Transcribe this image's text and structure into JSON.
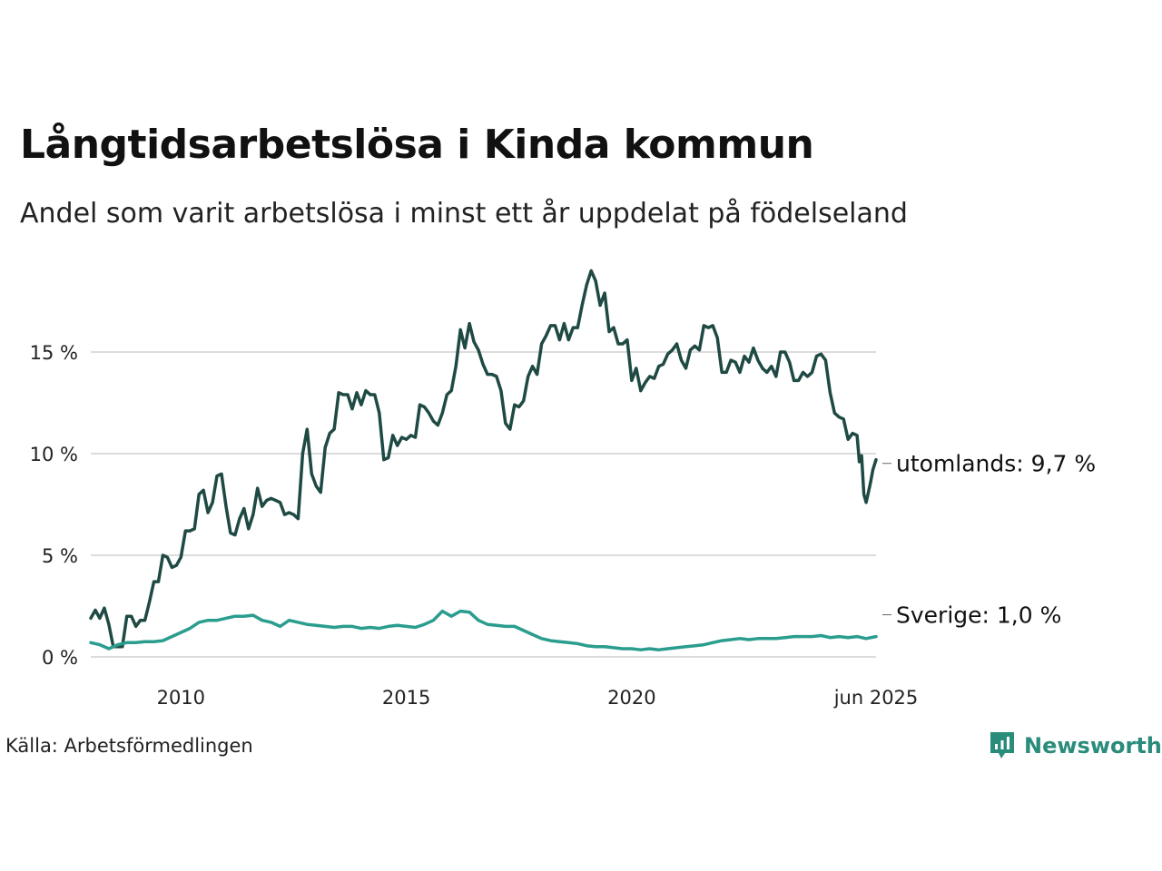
{
  "title": "Långtidsarbetslösa i Kinda kommun",
  "subtitle": "Andel som varit arbetslösa i minst ett år uppdelat på födelseland",
  "source": "Källa: Arbetsförmedlingen",
  "brand": {
    "name": "Newsworthy",
    "icon": "newsworthy-logo-icon",
    "color": "#2a8c7a"
  },
  "chart_data": {
    "type": "line",
    "title": "Långtidsarbetslösa i Kinda kommun",
    "subtitle": "Andel som varit arbetslösa i minst ett år uppdelat på födelseland",
    "xlabel": "",
    "ylabel": "",
    "xlim": [
      2008.0,
      2025.42
    ],
    "ylim": [
      0,
      19
    ],
    "x_ticks": [
      2010,
      2015,
      2020,
      2025.42
    ],
    "x_tick_labels": [
      "2010",
      "2015",
      "2020",
      "jun 2025"
    ],
    "y_ticks": [
      0,
      5,
      10,
      15
    ],
    "y_tick_labels": [
      "0 %",
      "5 %",
      "10 %",
      "15 %"
    ],
    "grid": true,
    "series": [
      {
        "name": "utomlands",
        "end_label": "utomlands: 9,7 %",
        "color": "#1f4a44",
        "points": [
          [
            2008.0,
            1.9
          ],
          [
            2008.1,
            2.3
          ],
          [
            2008.2,
            1.9
          ],
          [
            2008.3,
            2.4
          ],
          [
            2008.4,
            1.6
          ],
          [
            2008.5,
            0.5
          ],
          [
            2008.6,
            0.5
          ],
          [
            2008.7,
            0.5
          ],
          [
            2008.8,
            2.0
          ],
          [
            2008.9,
            2.0
          ],
          [
            2009.0,
            1.5
          ],
          [
            2009.1,
            1.8
          ],
          [
            2009.2,
            1.8
          ],
          [
            2009.3,
            2.7
          ],
          [
            2009.4,
            3.7
          ],
          [
            2009.5,
            3.7
          ],
          [
            2009.6,
            5.0
          ],
          [
            2009.7,
            4.9
          ],
          [
            2009.8,
            4.4
          ],
          [
            2009.9,
            4.5
          ],
          [
            2010.0,
            4.9
          ],
          [
            2010.1,
            6.2
          ],
          [
            2010.2,
            6.2
          ],
          [
            2010.3,
            6.3
          ],
          [
            2010.4,
            8.0
          ],
          [
            2010.5,
            8.2
          ],
          [
            2010.6,
            7.1
          ],
          [
            2010.7,
            7.6
          ],
          [
            2010.8,
            8.9
          ],
          [
            2010.9,
            9.0
          ],
          [
            2011.0,
            7.4
          ],
          [
            2011.1,
            6.1
          ],
          [
            2011.2,
            6.0
          ],
          [
            2011.3,
            6.8
          ],
          [
            2011.4,
            7.3
          ],
          [
            2011.5,
            6.3
          ],
          [
            2011.6,
            7.0
          ],
          [
            2011.7,
            8.3
          ],
          [
            2011.8,
            7.4
          ],
          [
            2011.9,
            7.7
          ],
          [
            2012.0,
            7.8
          ],
          [
            2012.1,
            7.7
          ],
          [
            2012.2,
            7.6
          ],
          [
            2012.3,
            7.0
          ],
          [
            2012.4,
            7.1
          ],
          [
            2012.5,
            7.0
          ],
          [
            2012.6,
            6.8
          ],
          [
            2012.7,
            10.0
          ],
          [
            2012.8,
            11.2
          ],
          [
            2012.9,
            9.0
          ],
          [
            2013.0,
            8.4
          ],
          [
            2013.1,
            8.1
          ],
          [
            2013.2,
            10.3
          ],
          [
            2013.3,
            11.0
          ],
          [
            2013.4,
            11.2
          ],
          [
            2013.5,
            13.0
          ],
          [
            2013.6,
            12.9
          ],
          [
            2013.7,
            12.9
          ],
          [
            2013.8,
            12.2
          ],
          [
            2013.9,
            13.0
          ],
          [
            2014.0,
            12.4
          ],
          [
            2014.1,
            13.1
          ],
          [
            2014.2,
            12.9
          ],
          [
            2014.3,
            12.9
          ],
          [
            2014.4,
            12.0
          ],
          [
            2014.5,
            9.7
          ],
          [
            2014.6,
            9.8
          ],
          [
            2014.7,
            10.9
          ],
          [
            2014.8,
            10.4
          ],
          [
            2014.9,
            10.8
          ],
          [
            2015.0,
            10.7
          ],
          [
            2015.1,
            10.9
          ],
          [
            2015.2,
            10.8
          ],
          [
            2015.3,
            12.4
          ],
          [
            2015.4,
            12.3
          ],
          [
            2015.5,
            12.0
          ],
          [
            2015.6,
            11.6
          ],
          [
            2015.7,
            11.4
          ],
          [
            2015.8,
            12.0
          ],
          [
            2015.9,
            12.9
          ],
          [
            2016.0,
            13.1
          ],
          [
            2016.1,
            14.3
          ],
          [
            2016.2,
            16.1
          ],
          [
            2016.3,
            15.2
          ],
          [
            2016.4,
            16.4
          ],
          [
            2016.5,
            15.5
          ],
          [
            2016.6,
            15.1
          ],
          [
            2016.7,
            14.4
          ],
          [
            2016.8,
            13.9
          ],
          [
            2016.9,
            13.9
          ],
          [
            2017.0,
            13.8
          ],
          [
            2017.1,
            13.1
          ],
          [
            2017.2,
            11.5
          ],
          [
            2017.3,
            11.2
          ],
          [
            2017.4,
            12.4
          ],
          [
            2017.5,
            12.3
          ],
          [
            2017.6,
            12.6
          ],
          [
            2017.7,
            13.8
          ],
          [
            2017.8,
            14.3
          ],
          [
            2017.9,
            13.9
          ],
          [
            2018.0,
            15.4
          ],
          [
            2018.1,
            15.8
          ],
          [
            2018.2,
            16.3
          ],
          [
            2018.3,
            16.3
          ],
          [
            2018.4,
            15.6
          ],
          [
            2018.5,
            16.4
          ],
          [
            2018.6,
            15.6
          ],
          [
            2018.7,
            16.2
          ],
          [
            2018.8,
            16.2
          ],
          [
            2018.9,
            17.3
          ],
          [
            2019.0,
            18.3
          ],
          [
            2019.1,
            19.0
          ],
          [
            2019.2,
            18.5
          ],
          [
            2019.3,
            17.3
          ],
          [
            2019.4,
            17.9
          ],
          [
            2019.5,
            16.0
          ],
          [
            2019.6,
            16.2
          ],
          [
            2019.7,
            15.4
          ],
          [
            2019.8,
            15.4
          ],
          [
            2019.9,
            15.6
          ],
          [
            2020.0,
            13.6
          ],
          [
            2020.1,
            14.2
          ],
          [
            2020.2,
            13.1
          ],
          [
            2020.3,
            13.5
          ],
          [
            2020.4,
            13.8
          ],
          [
            2020.5,
            13.7
          ],
          [
            2020.6,
            14.3
          ],
          [
            2020.7,
            14.4
          ],
          [
            2020.8,
            14.9
          ],
          [
            2020.9,
            15.1
          ],
          [
            2021.0,
            15.4
          ],
          [
            2021.1,
            14.6
          ],
          [
            2021.2,
            14.2
          ],
          [
            2021.3,
            15.1
          ],
          [
            2021.4,
            15.3
          ],
          [
            2021.5,
            15.1
          ],
          [
            2021.6,
            16.3
          ],
          [
            2021.7,
            16.2
          ],
          [
            2021.8,
            16.3
          ],
          [
            2021.9,
            15.7
          ],
          [
            2022.0,
            14.0
          ],
          [
            2022.1,
            14.0
          ],
          [
            2022.2,
            14.6
          ],
          [
            2022.3,
            14.5
          ],
          [
            2022.4,
            14.0
          ],
          [
            2022.5,
            14.8
          ],
          [
            2022.6,
            14.5
          ],
          [
            2022.7,
            15.2
          ],
          [
            2022.8,
            14.6
          ],
          [
            2022.9,
            14.2
          ],
          [
            2023.0,
            14.0
          ],
          [
            2023.1,
            14.3
          ],
          [
            2023.2,
            13.8
          ],
          [
            2023.3,
            15.0
          ],
          [
            2023.4,
            15.0
          ],
          [
            2023.5,
            14.5
          ],
          [
            2023.6,
            13.6
          ],
          [
            2023.7,
            13.6
          ],
          [
            2023.8,
            14.0
          ],
          [
            2023.9,
            13.8
          ],
          [
            2024.0,
            14.0
          ],
          [
            2024.1,
            14.8
          ],
          [
            2024.2,
            14.9
          ],
          [
            2024.3,
            14.6
          ],
          [
            2024.4,
            13.0
          ],
          [
            2024.5,
            12.0
          ],
          [
            2024.6,
            11.8
          ],
          [
            2024.7,
            11.7
          ],
          [
            2024.8,
            10.7
          ],
          [
            2024.9,
            11.0
          ],
          [
            2025.0,
            10.9
          ],
          [
            2025.05,
            9.6
          ],
          [
            2025.1,
            9.9
          ],
          [
            2025.15,
            8.0
          ],
          [
            2025.2,
            7.6
          ],
          [
            2025.25,
            8.1
          ],
          [
            2025.3,
            8.6
          ],
          [
            2025.35,
            9.2
          ],
          [
            2025.42,
            9.7
          ]
        ]
      },
      {
        "name": "Sverige",
        "end_label": "Sverige: 1,0 %",
        "color": "#2a9d8f",
        "points": [
          [
            2008.0,
            0.7
          ],
          [
            2008.2,
            0.6
          ],
          [
            2008.4,
            0.4
          ],
          [
            2008.6,
            0.6
          ],
          [
            2008.8,
            0.7
          ],
          [
            2009.0,
            0.7
          ],
          [
            2009.2,
            0.75
          ],
          [
            2009.4,
            0.75
          ],
          [
            2009.6,
            0.8
          ],
          [
            2009.8,
            1.0
          ],
          [
            2010.0,
            1.2
          ],
          [
            2010.2,
            1.4
          ],
          [
            2010.4,
            1.7
          ],
          [
            2010.6,
            1.8
          ],
          [
            2010.8,
            1.8
          ],
          [
            2011.0,
            1.9
          ],
          [
            2011.2,
            2.0
          ],
          [
            2011.4,
            2.0
          ],
          [
            2011.6,
            2.05
          ],
          [
            2011.8,
            1.8
          ],
          [
            2012.0,
            1.7
          ],
          [
            2012.2,
            1.5
          ],
          [
            2012.4,
            1.8
          ],
          [
            2012.6,
            1.7
          ],
          [
            2012.8,
            1.6
          ],
          [
            2013.0,
            1.55
          ],
          [
            2013.2,
            1.5
          ],
          [
            2013.4,
            1.45
          ],
          [
            2013.6,
            1.5
          ],
          [
            2013.8,
            1.5
          ],
          [
            2014.0,
            1.4
          ],
          [
            2014.2,
            1.45
          ],
          [
            2014.4,
            1.4
          ],
          [
            2014.6,
            1.5
          ],
          [
            2014.8,
            1.55
          ],
          [
            2015.0,
            1.5
          ],
          [
            2015.2,
            1.45
          ],
          [
            2015.4,
            1.6
          ],
          [
            2015.6,
            1.8
          ],
          [
            2015.8,
            2.25
          ],
          [
            2016.0,
            2.0
          ],
          [
            2016.2,
            2.25
          ],
          [
            2016.4,
            2.2
          ],
          [
            2016.6,
            1.8
          ],
          [
            2016.8,
            1.6
          ],
          [
            2017.0,
            1.55
          ],
          [
            2017.2,
            1.5
          ],
          [
            2017.4,
            1.5
          ],
          [
            2017.6,
            1.3
          ],
          [
            2017.8,
            1.1
          ],
          [
            2018.0,
            0.9
          ],
          [
            2018.2,
            0.8
          ],
          [
            2018.4,
            0.75
          ],
          [
            2018.6,
            0.7
          ],
          [
            2018.8,
            0.65
          ],
          [
            2019.0,
            0.55
          ],
          [
            2019.2,
            0.5
          ],
          [
            2019.4,
            0.5
          ],
          [
            2019.6,
            0.45
          ],
          [
            2019.8,
            0.4
          ],
          [
            2020.0,
            0.4
          ],
          [
            2020.2,
            0.35
          ],
          [
            2020.4,
            0.4
          ],
          [
            2020.6,
            0.35
          ],
          [
            2020.8,
            0.4
          ],
          [
            2021.0,
            0.45
          ],
          [
            2021.2,
            0.5
          ],
          [
            2021.4,
            0.55
          ],
          [
            2021.6,
            0.6
          ],
          [
            2021.8,
            0.7
          ],
          [
            2022.0,
            0.8
          ],
          [
            2022.2,
            0.85
          ],
          [
            2022.4,
            0.9
          ],
          [
            2022.6,
            0.85
          ],
          [
            2022.8,
            0.9
          ],
          [
            2023.0,
            0.9
          ],
          [
            2023.2,
            0.9
          ],
          [
            2023.4,
            0.95
          ],
          [
            2023.6,
            1.0
          ],
          [
            2023.8,
            1.0
          ],
          [
            2024.0,
            1.0
          ],
          [
            2024.2,
            1.05
          ],
          [
            2024.4,
            0.95
          ],
          [
            2024.6,
            1.0
          ],
          [
            2024.8,
            0.95
          ],
          [
            2025.0,
            1.0
          ],
          [
            2025.2,
            0.9
          ],
          [
            2025.42,
            1.0
          ]
        ]
      }
    ]
  }
}
